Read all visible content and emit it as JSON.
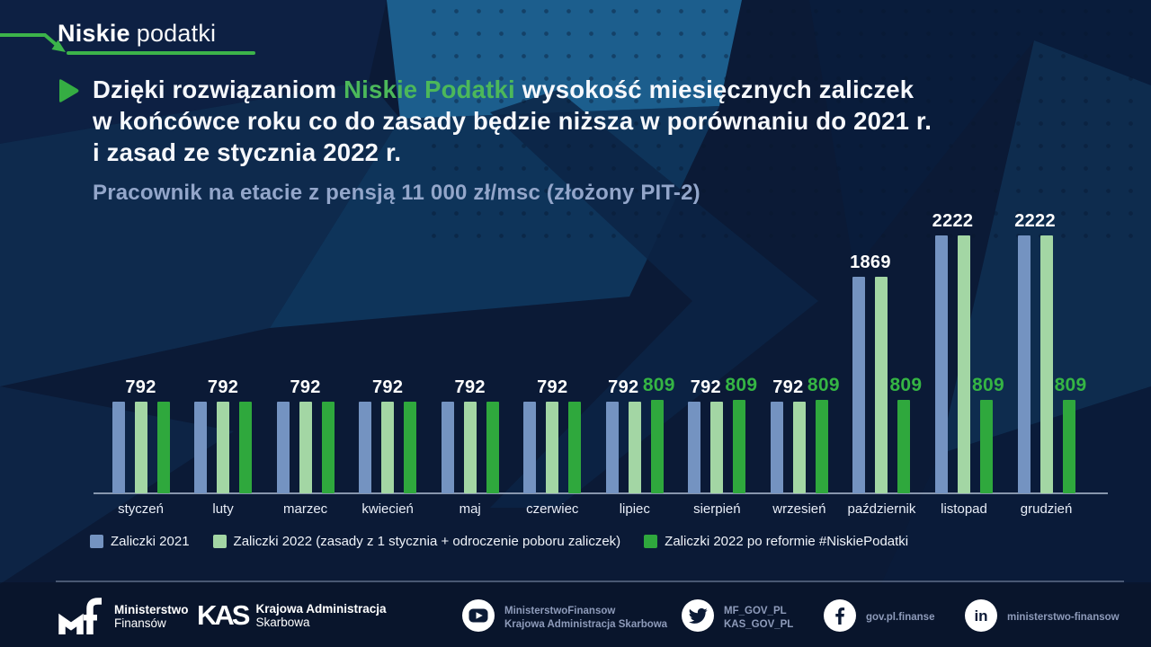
{
  "brand": {
    "bold": "Niskie",
    "light": "podatki"
  },
  "headline": {
    "line1_pre": "Dzięki rozwiązaniom ",
    "line1_highlight": "Niskie Podatki",
    "line1_post": " wysokość miesięcznych zaliczek",
    "line2": "w końcówce roku co do zasady będzie niższa w porównaniu do 2021 r.",
    "line3": "i zasad ze stycznia 2022 r."
  },
  "subtitle": "Pracownik na etacie z pensją 11 000 zł/msc (złożony PIT-2)",
  "chart_data": {
    "type": "bar",
    "title": "Pracownik na etacie z pensją 11 000 zł/msc (złożony PIT-2)",
    "categories": [
      "styczeń",
      "luty",
      "marzec",
      "kwiecień",
      "maj",
      "czerwiec",
      "lipiec",
      "sierpień",
      "wrzesień",
      "październik",
      "listopad",
      "grudzień"
    ],
    "series": [
      {
        "name": "Zaliczki 2021",
        "color": "#7493c1",
        "values": [
          792,
          792,
          792,
          792,
          792,
          792,
          792,
          792,
          792,
          1869,
          2222,
          2222
        ]
      },
      {
        "name": "Zaliczki 2022 (zasady z 1 stycznia + odroczenie poboru zaliczek)",
        "color": "#a3d6a4",
        "values": [
          792,
          792,
          792,
          792,
          792,
          792,
          792,
          792,
          792,
          1869,
          2222,
          2222
        ]
      },
      {
        "name": "Zaliczki 2022 po reformie #NiskiePodatki",
        "color": "#2fa83d",
        "values": [
          792,
          792,
          792,
          792,
          792,
          792,
          809,
          809,
          809,
          809,
          809,
          809
        ]
      }
    ],
    "value_label_colors": {
      "default": "#ffffff",
      "reform": "#35b544"
    },
    "xlabel": "",
    "ylabel": "",
    "ylim": [
      0,
      2400
    ],
    "grid": false,
    "legend_position": "bottom"
  },
  "legend": [
    {
      "label": "Zaliczki 2021",
      "color": "#7493c1"
    },
    {
      "label": "Zaliczki 2022 (zasady z 1 stycznia + odroczenie poboru zaliczek)",
      "color": "#a3d6a4"
    },
    {
      "label": "Zaliczki 2022 po reformie #NiskiePodatki",
      "color": "#2fa83d"
    }
  ],
  "footer": {
    "orgs": [
      {
        "icon": "mf-logo",
        "line1": "Ministerstwo",
        "line2": "Finansów"
      },
      {
        "icon": "kas-logo",
        "glyph": "KAS",
        "line1": "Krajowa Administracja",
        "line2": "Skarbowa"
      }
    ],
    "socials": [
      {
        "icon": "youtube",
        "line1": "MinisterstwoFinansow",
        "line2": "Krajowa Administracja Skarbowa"
      },
      {
        "icon": "twitter",
        "line1": "MF_GOV_PL",
        "line2": "KAS_GOV_PL"
      },
      {
        "icon": "facebook",
        "line1": "gov.pl.finanse",
        "line2": ""
      },
      {
        "icon": "linkedin",
        "line1": "ministerstwo-finansow",
        "line2": ""
      }
    ]
  },
  "colors": {
    "background": "#0b1a36",
    "accent_green": "#3cb44a",
    "headline_highlight": "#4cb85a",
    "subtitle": "#93a6ca",
    "axis": "#9eabc1"
  }
}
